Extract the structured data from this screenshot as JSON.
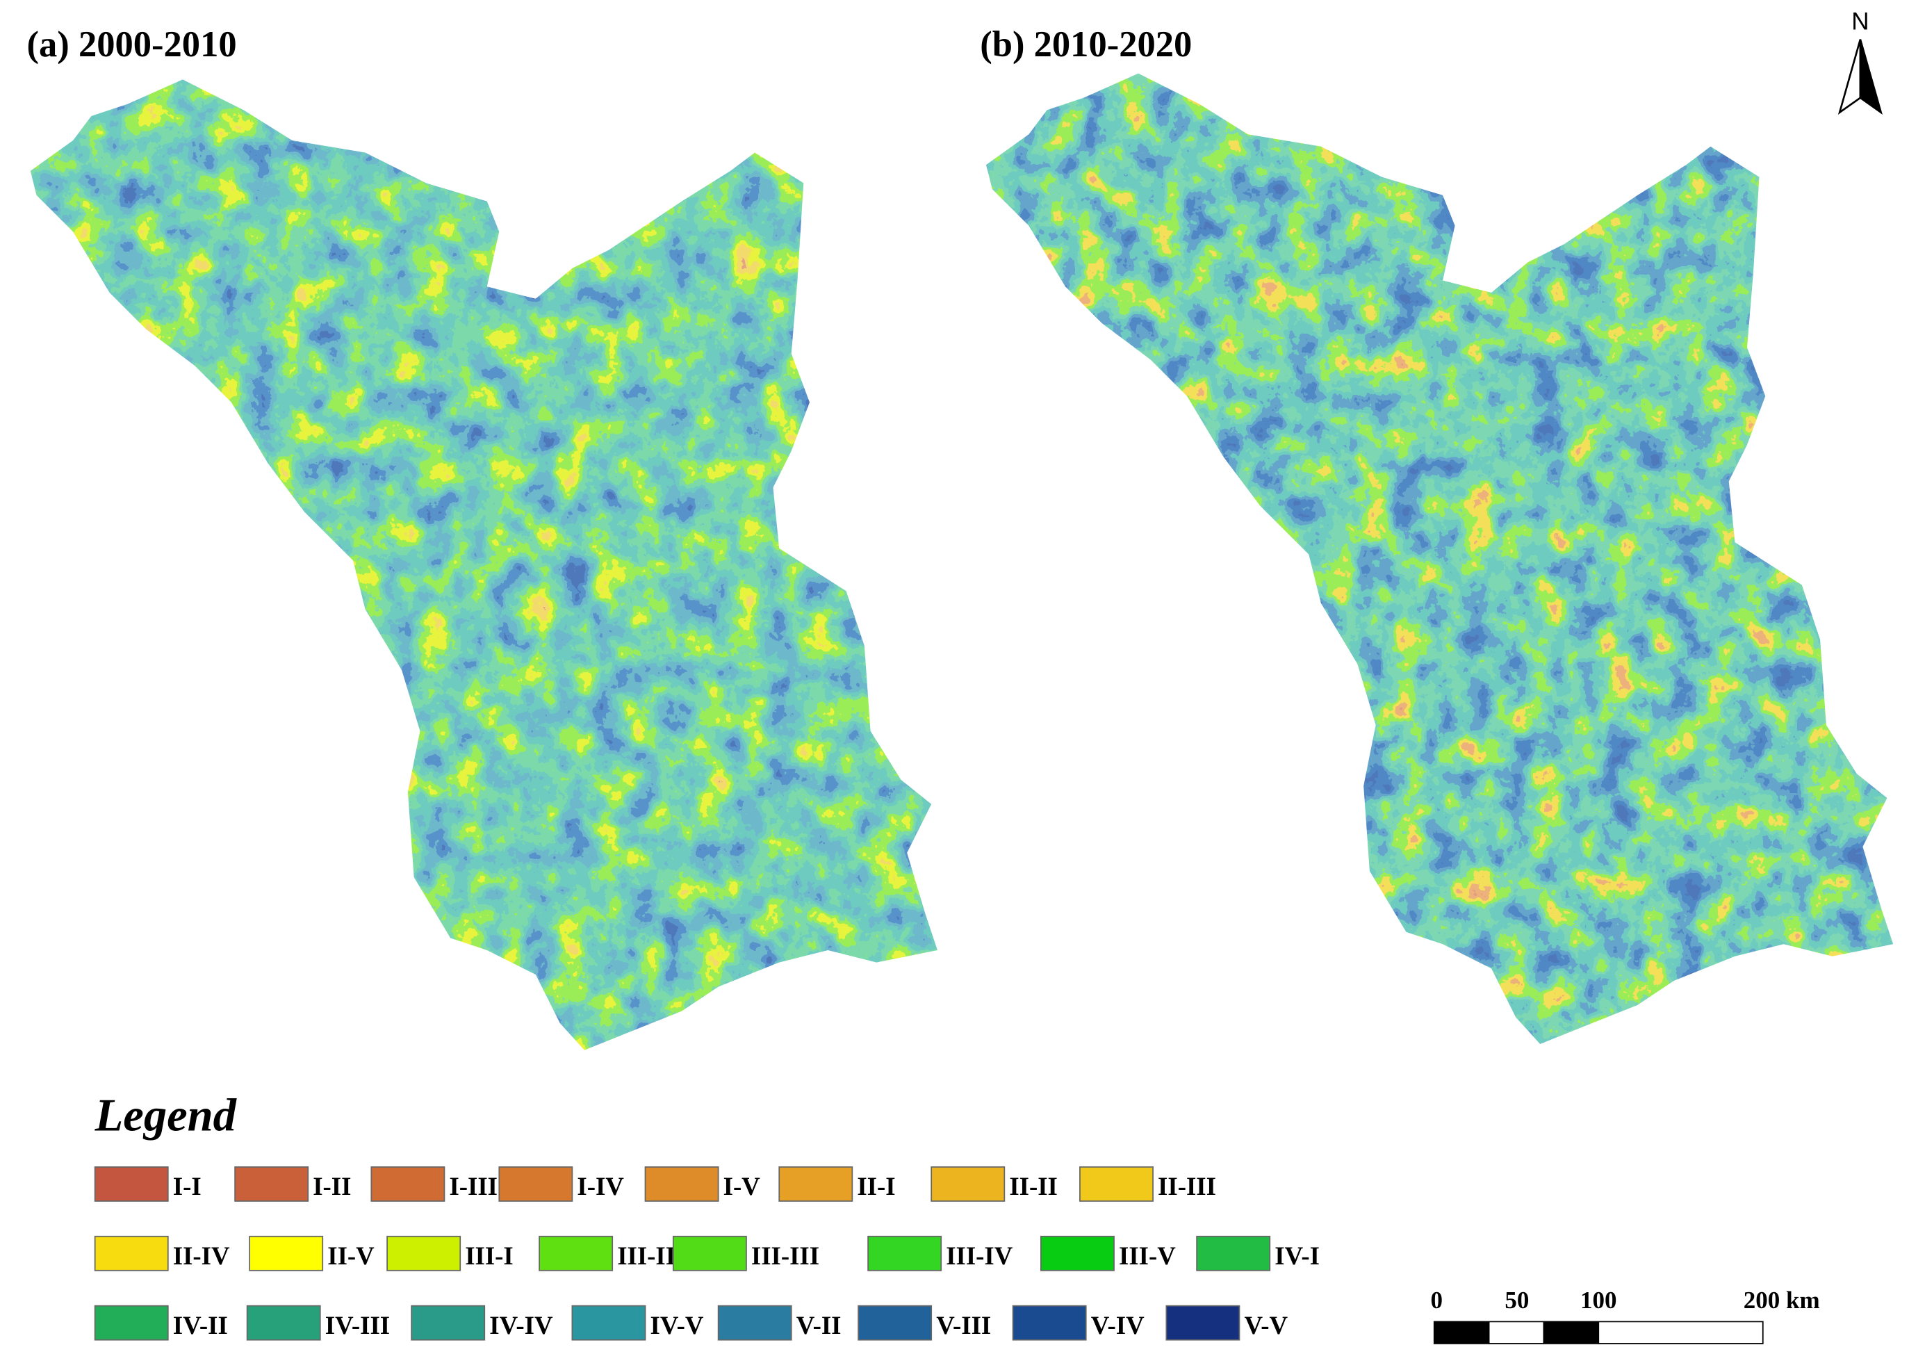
{
  "panels": [
    {
      "title": "(a) 2000-2010"
    },
    {
      "title": "(b) 2010-2020"
    }
  ],
  "north": "N",
  "scale_bar": {
    "labels": [
      "0",
      "50",
      "100",
      "200 km"
    ]
  },
  "legend": {
    "title": "Legend",
    "items": [
      {
        "label": "I-I",
        "color": "#c4553f"
      },
      {
        "label": "I-II",
        "color": "#c9603a"
      },
      {
        "label": "I-III",
        "color": "#cf6b33"
      },
      {
        "label": "I-IV",
        "color": "#d6792e"
      },
      {
        "label": "I-V",
        "color": "#de8b2a"
      },
      {
        "label": "II-I",
        "color": "#e5a025"
      },
      {
        "label": "II-II",
        "color": "#ecb51f"
      },
      {
        "label": "II-III",
        "color": "#f1c91a"
      },
      {
        "label": "II-IV",
        "color": "#f7dc0f"
      },
      {
        "label": "II-V",
        "color": "#ffff00"
      },
      {
        "label": "III-I",
        "color": "#ccf000"
      },
      {
        "label": "III-II",
        "color": "#5fe010"
      },
      {
        "label": "III-III",
        "color": "#52dc18"
      },
      {
        "label": "III-IV",
        "color": "#33d622"
      },
      {
        "label": "III-V",
        "color": "#08cc12"
      },
      {
        "label": "IV-I",
        "color": "#22bb44"
      },
      {
        "label": "IV-II",
        "color": "#22ad58"
      },
      {
        "label": "IV-III",
        "color": "#27a17a"
      },
      {
        "label": "IV-IV",
        "color": "#2a9b89"
      },
      {
        "label": "IV-V",
        "color": "#2a97a0"
      },
      {
        "label": "V-II",
        "color": "#2a7ca0"
      },
      {
        "label": "V-III",
        "color": "#21629a"
      },
      {
        "label": "V-IV",
        "color": "#1a4a8f"
      },
      {
        "label": "V-V",
        "color": "#15307f"
      }
    ]
  }
}
